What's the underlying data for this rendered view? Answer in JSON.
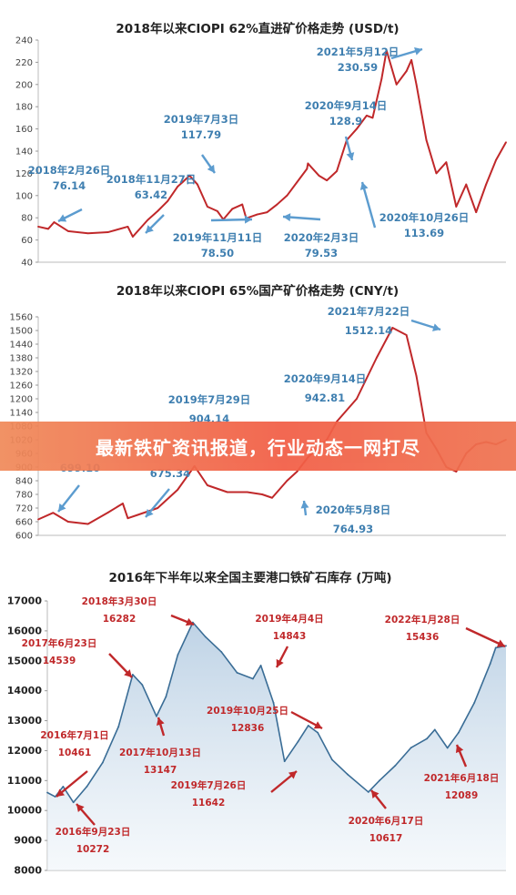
{
  "banner": {
    "text": "最新铁矿资讯报道，行业动态一网打尽"
  },
  "chart_data": [
    {
      "type": "line",
      "title": "2018年以来CIOPI 62%直进矿价格走势 (USD/t)",
      "ylim": [
        40,
        240
      ],
      "yticks": [
        "240",
        "220",
        "200",
        "180",
        "160",
        "140",
        "120",
        "100",
        "80",
        "60",
        "40"
      ],
      "grid": false,
      "color": "#c0282a",
      "x_range": [
        2018.0,
        2022.7
      ],
      "series": [
        {
          "x": [
            2018.0,
            2018.1,
            2018.16,
            2018.3,
            2018.5,
            2018.7,
            2018.9,
            2018.95,
            2019.1,
            2019.2,
            2019.3,
            2019.4,
            2019.45,
            2019.52,
            2019.6,
            2019.7,
            2019.8,
            2019.86,
            2019.95,
            2020.05,
            2020.09,
            2020.2,
            2020.3,
            2020.4,
            2020.5,
            2020.6,
            2020.7,
            2020.71,
            2020.82,
            2020.9,
            2021.0,
            2021.1,
            2021.2,
            2021.3,
            2021.36,
            2021.45,
            2021.5,
            2021.6,
            2021.7,
            2021.75,
            2021.8,
            2021.9,
            2022.0,
            2022.1,
            2022.2,
            2022.3,
            2022.4,
            2022.5,
            2022.6,
            2022.7
          ],
          "y": [
            72,
            70,
            76,
            68,
            66,
            67,
            72,
            63,
            78,
            86,
            95,
            108,
            112,
            118,
            110,
            90,
            86,
            78.5,
            88,
            92,
            79.5,
            83,
            85,
            92,
            100,
            112,
            124,
            128.9,
            118,
            113.7,
            122,
            150,
            160,
            172,
            170,
            205,
            230.6,
            200,
            212,
            222,
            200,
            150,
            120,
            130,
            90,
            110,
            85,
            110,
            132,
            148
          ]
        }
      ],
      "annotations": [
        {
          "date": "2018年2月26日",
          "value": "76.14"
        },
        {
          "date": "2018年11月27日",
          "value": "63.42"
        },
        {
          "date": "2019年7月3日",
          "value": "117.79"
        },
        {
          "date": "2019年11月11日",
          "value": "78.50"
        },
        {
          "date": "2020年2月3日",
          "value": "79.53"
        },
        {
          "date": "2020年9月14日",
          "value": "128.9"
        },
        {
          "date": "2020年10月26日",
          "value": "113.69"
        },
        {
          "date": "2021年5月12日",
          "value": "230.59"
        }
      ]
    },
    {
      "type": "line",
      "title": "2018年以来CIOPI 65%国产矿价格走势 (CNY/t)",
      "ylim": [
        600,
        1560
      ],
      "yticks": [
        "1560",
        "1500",
        "1440",
        "1380",
        "1320",
        "1260",
        "1200",
        "1140",
        "1080",
        "1020",
        "960",
        "900",
        "840",
        "780",
        "720",
        "660",
        "600"
      ],
      "grid": false,
      "color": "#c0282a",
      "x_range": [
        2018.0,
        2022.7
      ],
      "series": [
        {
          "x": [
            2018.0,
            2018.15,
            2018.3,
            2018.5,
            2018.7,
            2018.85,
            2018.9,
            2019.0,
            2019.2,
            2019.4,
            2019.57,
            2019.7,
            2019.9,
            2020.1,
            2020.25,
            2020.35,
            2020.5,
            2020.6,
            2020.71,
            2020.9,
            2021.0,
            2021.2,
            2021.4,
            2021.56,
            2021.7,
            2021.8,
            2021.9,
            2022.0,
            2022.1,
            2022.2,
            2022.3,
            2022.4,
            2022.5,
            2022.6,
            2022.7
          ],
          "y": [
            670,
            699.1,
            660,
            650,
            700,
            740,
            675.3,
            690,
            720,
            800,
            904.1,
            820,
            790,
            790,
            780,
            765,
            840,
            880,
            942.8,
            1020,
            1100,
            1200,
            1380,
            1512.1,
            1480,
            1300,
            1050,
            980,
            900,
            880,
            960,
            1000,
            1010,
            1000,
            1020
          ]
        }
      ],
      "annotations": [
        {
          "date": "",
          "value": "699.10"
        },
        {
          "date": "",
          "value": "675.34"
        },
        {
          "date": "2019年7月29日",
          "value": "904.14"
        },
        {
          "date": "2020年5月8日",
          "value": "764.93"
        },
        {
          "date": "2020年9月14日",
          "value": "942.81"
        },
        {
          "date": "2021年7月22日",
          "value": "1512.14"
        }
      ]
    },
    {
      "type": "area",
      "title": "2016年下半年以来全国主要港口铁矿石库存 (万吨)",
      "ylim": [
        8000,
        17000
      ],
      "yticks": [
        "17000",
        "16000",
        "15000",
        "14000",
        "13000",
        "12000",
        "11000",
        "10000",
        "9000",
        "8000"
      ],
      "grid": false,
      "color": "#3a6d96",
      "x_range": [
        2016.4,
        2022.2
      ],
      "series": [
        {
          "x": [
            2016.4,
            2016.5,
            2016.6,
            2016.73,
            2016.9,
            2017.1,
            2017.3,
            2017.48,
            2017.6,
            2017.78,
            2017.9,
            2018.05,
            2018.24,
            2018.4,
            2018.6,
            2018.8,
            2019.0,
            2019.1,
            2019.26,
            2019.4,
            2019.57,
            2019.7,
            2019.82,
            2020.0,
            2020.2,
            2020.46,
            2020.6,
            2020.8,
            2021.0,
            2021.2,
            2021.3,
            2021.46,
            2021.6,
            2021.8,
            2022.0,
            2022.07,
            2022.2
          ],
          "y": [
            10600,
            10461,
            10800,
            10272,
            10800,
            11600,
            12800,
            14539,
            14200,
            13147,
            13800,
            15200,
            16282,
            15800,
            15300,
            14600,
            14400,
            14843,
            13600,
            11642,
            12300,
            12836,
            12600,
            11700,
            11200,
            10617,
            11000,
            11500,
            12100,
            12400,
            12700,
            12089,
            12600,
            13600,
            14900,
            15436,
            15500
          ]
        }
      ],
      "annotations": [
        {
          "date": "2016年7月1日",
          "value": "10461"
        },
        {
          "date": "2016年9月23日",
          "value": "10272"
        },
        {
          "date": "2017年6月23日",
          "value": "14539"
        },
        {
          "date": "2017年10月13日",
          "value": "13147"
        },
        {
          "date": "2018年3月30日",
          "value": "16282"
        },
        {
          "date": "2019年4月4日",
          "value": "14843"
        },
        {
          "date": "2019年7月26日",
          "value": "11642"
        },
        {
          "date": "2019年10月25日",
          "value": "12836"
        },
        {
          "date": "2020年6月17日",
          "value": "10617"
        },
        {
          "date": "2021年6月18日",
          "value": "12089"
        },
        {
          "date": "2022年1月28日",
          "value": "15436"
        }
      ]
    }
  ]
}
